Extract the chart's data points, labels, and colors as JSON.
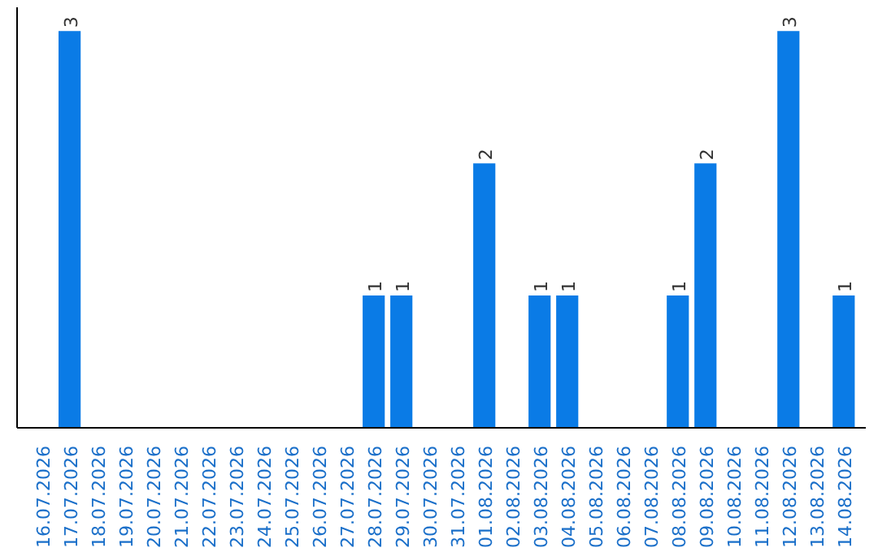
{
  "chart_data": {
    "type": "bar",
    "categories": [
      "16.07.2026",
      "17.07.2026",
      "18.07.2026",
      "19.07.2026",
      "20.07.2026",
      "21.07.2026",
      "22.07.2026",
      "23.07.2026",
      "24.07.2026",
      "25.07.2026",
      "26.07.2026",
      "27.07.2026",
      "28.07.2026",
      "29.07.2026",
      "30.07.2026",
      "31.07.2026",
      "01.08.2026",
      "02.08.2026",
      "03.08.2026",
      "04.08.2026",
      "05.08.2026",
      "06.08.2026",
      "07.08.2026",
      "08.08.2026",
      "09.08.2026",
      "10.08.2026",
      "11.08.2026",
      "12.08.2026",
      "13.08.2026",
      "14.08.2026"
    ],
    "values": [
      0,
      3,
      0,
      0,
      0,
      0,
      0,
      0,
      0,
      0,
      0,
      0,
      1,
      1,
      0,
      0,
      2,
      0,
      1,
      1,
      0,
      0,
      0,
      1,
      2,
      0,
      0,
      3,
      0,
      1
    ],
    "value_labels": [
      null,
      "3",
      null,
      null,
      null,
      null,
      null,
      null,
      null,
      null,
      null,
      null,
      "1",
      "1",
      null,
      null,
      "2",
      null,
      "1",
      "1",
      null,
      null,
      null,
      "1",
      "2",
      null,
      null,
      "3",
      null,
      "1"
    ],
    "color": "#0a7be6",
    "grid": false
  }
}
